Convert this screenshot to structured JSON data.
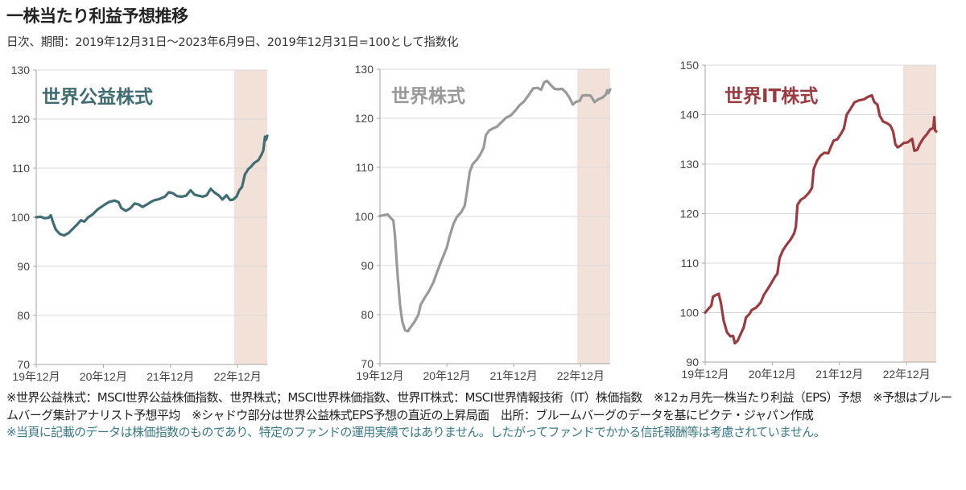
{
  "header": {
    "title": "一株当たり利益予想推移",
    "subtitle": "日次、期間：2019年12月31日～2023年6月9日、2019年12月31日=100として指数化"
  },
  "colors": {
    "shade": "#f2e1d8",
    "grid": "#d9d9d9",
    "axis": "#a6a6a6",
    "utility": "#3f6d72",
    "world": "#999999",
    "it": "#9b3a3f",
    "disclaimer": "#3a7a86"
  },
  "chart_data": [
    {
      "type": "line",
      "title": "世界公益株式",
      "xlabel": "",
      "ylabel": "",
      "ylim": [
        70,
        130
      ],
      "yticks": [
        70,
        80,
        90,
        100,
        110,
        120,
        130
      ],
      "xlim_months": [
        0,
        41.3
      ],
      "xticks": [
        {
          "month": 0,
          "label": "19年12月"
        },
        {
          "month": 12,
          "label": "20年12月"
        },
        {
          "month": 24,
          "label": "21年12月"
        },
        {
          "month": 36,
          "label": "22年12月"
        }
      ],
      "shade_months": [
        35.4,
        41.3
      ],
      "grid": true,
      "series": [
        {
          "name": "世界公益株式",
          "color_key": "utility",
          "points": [
            [
              0,
              100
            ],
            [
              0.8,
              100.1
            ],
            [
              1.5,
              99.8
            ],
            [
              2.2,
              99.9
            ],
            [
              2.6,
              100.4
            ],
            [
              3,
              99
            ],
            [
              3.5,
              97.5
            ],
            [
              4.2,
              96.6
            ],
            [
              5,
              96.3
            ],
            [
              5.8,
              96.8
            ],
            [
              6.5,
              97.6
            ],
            [
              7.3,
              98.5
            ],
            [
              8,
              99.4
            ],
            [
              8.6,
              99.1
            ],
            [
              9.3,
              100
            ],
            [
              10,
              100.5
            ],
            [
              11,
              101.6
            ],
            [
              12,
              102.4
            ],
            [
              13,
              103.1
            ],
            [
              14,
              103.4
            ],
            [
              14.7,
              103.1
            ],
            [
              15.2,
              101.9
            ],
            [
              16,
              101.3
            ],
            [
              16.8,
              101.8
            ],
            [
              17.6,
              102.8
            ],
            [
              18.3,
              102.6
            ],
            [
              19,
              102.1
            ],
            [
              19.8,
              102.6
            ],
            [
              20.6,
              103.2
            ],
            [
              21.2,
              103.5
            ],
            [
              22,
              103.7
            ],
            [
              23,
              104.2
            ],
            [
              23.7,
              105.1
            ],
            [
              24.4,
              104.9
            ],
            [
              25.2,
              104.3
            ],
            [
              26,
              104.2
            ],
            [
              26.8,
              104.4
            ],
            [
              27.6,
              105.5
            ],
            [
              28.3,
              104.6
            ],
            [
              29,
              104.4
            ],
            [
              29.8,
              104.2
            ],
            [
              30.5,
              104.5
            ],
            [
              31.2,
              105.8
            ],
            [
              31.9,
              105
            ],
            [
              32.6,
              104.5
            ],
            [
              33.3,
              103.6
            ],
            [
              34,
              104.5
            ],
            [
              34.7,
              103.5
            ],
            [
              35.2,
              103.6
            ],
            [
              35.8,
              104.2
            ],
            [
              36.3,
              105.5
            ],
            [
              36.8,
              106.2
            ],
            [
              37.3,
              108.7
            ],
            [
              37.9,
              109.8
            ],
            [
              38.4,
              110.3
            ],
            [
              39,
              111.1
            ],
            [
              39.7,
              111.6
            ],
            [
              40.2,
              112.6
            ],
            [
              40.6,
              113.6
            ],
            [
              40.9,
              116.4
            ],
            [
              41.1,
              115.8
            ],
            [
              41.3,
              116.6
            ]
          ]
        }
      ]
    },
    {
      "type": "line",
      "title": "世界株式",
      "xlabel": "",
      "ylabel": "",
      "ylim": [
        70,
        130
      ],
      "yticks": [
        70,
        80,
        90,
        100,
        110,
        120,
        130
      ],
      "xlim_months": [
        0,
        41.3
      ],
      "xticks": [
        {
          "month": 0,
          "label": "19年12月"
        },
        {
          "month": 12,
          "label": "20年12月"
        },
        {
          "month": 24,
          "label": "21年12月"
        },
        {
          "month": 36,
          "label": "22年12月"
        }
      ],
      "shade_months": [
        35.4,
        41.3
      ],
      "grid": true,
      "series": [
        {
          "name": "世界株式",
          "color_key": "world",
          "points": [
            [
              0,
              100.1
            ],
            [
              0.8,
              100.3
            ],
            [
              1.4,
              100.4
            ],
            [
              2,
              99.6
            ],
            [
              2.4,
              99.2
            ],
            [
              2.7,
              96
            ],
            [
              3.1,
              89
            ],
            [
              3.6,
              82
            ],
            [
              4,
              78.6
            ],
            [
              4.5,
              76.8
            ],
            [
              5,
              76.6
            ],
            [
              5.6,
              77.6
            ],
            [
              6.3,
              78.7
            ],
            [
              6.9,
              80
            ],
            [
              7.3,
              82
            ],
            [
              8,
              83.4
            ],
            [
              8.8,
              84.8
            ],
            [
              9.6,
              86.6
            ],
            [
              10.2,
              88.5
            ],
            [
              11,
              90.9
            ],
            [
              12,
              93.7
            ],
            [
              12.5,
              96
            ],
            [
              13.2,
              98.5
            ],
            [
              13.8,
              99.9
            ],
            [
              14.6,
              100.9
            ],
            [
              15.2,
              102.2
            ],
            [
              15.6,
              105
            ],
            [
              16.1,
              109
            ],
            [
              16.6,
              110.6
            ],
            [
              17.4,
              111.6
            ],
            [
              18,
              112.6
            ],
            [
              18.6,
              114
            ],
            [
              19,
              116.6
            ],
            [
              19.6,
              117.5
            ],
            [
              20.2,
              117.9
            ],
            [
              21,
              118.3
            ],
            [
              21.8,
              119.2
            ],
            [
              22.6,
              120.1
            ],
            [
              23.5,
              120.6
            ],
            [
              24.3,
              121.6
            ],
            [
              25,
              122.6
            ],
            [
              25.8,
              123.4
            ],
            [
              26.6,
              124.6
            ],
            [
              27.5,
              126.1
            ],
            [
              28.3,
              126.2
            ],
            [
              28.9,
              125.8
            ],
            [
              29.5,
              127.4
            ],
            [
              30,
              127.6
            ],
            [
              30.6,
              126.8
            ],
            [
              31.3,
              126
            ],
            [
              32,
              125.9
            ],
            [
              32.7,
              126
            ],
            [
              33.4,
              125.2
            ],
            [
              34,
              124.2
            ],
            [
              34.6,
              122.8
            ],
            [
              35.2,
              123.4
            ],
            [
              35.8,
              123.5
            ],
            [
              36.3,
              124.6
            ],
            [
              37,
              124.7
            ],
            [
              37.8,
              124.6
            ],
            [
              38.5,
              123.3
            ],
            [
              39.2,
              123.9
            ],
            [
              39.9,
              124.2
            ],
            [
              40.5,
              124.8
            ],
            [
              40.8,
              125.7
            ],
            [
              41,
              125.1
            ],
            [
              41.3,
              125.9
            ]
          ]
        }
      ]
    },
    {
      "type": "line",
      "title": "世界IT株式",
      "xlabel": "",
      "ylabel": "",
      "ylim": [
        90,
        150
      ],
      "yticks": [
        90,
        100,
        110,
        120,
        130,
        140,
        150
      ],
      "xlim_months": [
        0,
        41.3
      ],
      "xticks": [
        {
          "month": 0,
          "label": "19年12月"
        },
        {
          "month": 12,
          "label": "20年12月"
        },
        {
          "month": 24,
          "label": "21年12月"
        },
        {
          "month": 36,
          "label": "22年12月"
        }
      ],
      "shade_months": [
        35.4,
        41.3
      ],
      "grid": true,
      "series": [
        {
          "name": "世界IT株式",
          "color_key": "it",
          "points": [
            [
              0,
              100
            ],
            [
              0.6,
              100.8
            ],
            [
              1.1,
              101.4
            ],
            [
              1.4,
              103.2
            ],
            [
              2,
              103.6
            ],
            [
              2.4,
              103.8
            ],
            [
              2.8,
              102
            ],
            [
              3.3,
              98.4
            ],
            [
              3.9,
              96
            ],
            [
              4.5,
              95.2
            ],
            [
              5,
              95.3
            ],
            [
              5.3,
              93.8
            ],
            [
              5.8,
              94.3
            ],
            [
              6.4,
              95.8
            ],
            [
              6.9,
              97
            ],
            [
              7.3,
              99
            ],
            [
              7.9,
              99.7
            ],
            [
              8.3,
              100.5
            ],
            [
              9.1,
              101
            ],
            [
              9.9,
              102
            ],
            [
              10.5,
              103.6
            ],
            [
              11.2,
              104.8
            ],
            [
              11.9,
              106.1
            ],
            [
              12.5,
              107.3
            ],
            [
              12.9,
              107.8
            ],
            [
              13.3,
              111
            ],
            [
              13.9,
              112.6
            ],
            [
              14.6,
              113.8
            ],
            [
              15.3,
              114.8
            ],
            [
              15.9,
              116
            ],
            [
              16.2,
              117.3
            ],
            [
              16.5,
              121.8
            ],
            [
              17.1,
              122.8
            ],
            [
              17.8,
              123.3
            ],
            [
              18.6,
              124.3
            ],
            [
              19.1,
              125.2
            ],
            [
              19.4,
              129
            ],
            [
              20,
              130.7
            ],
            [
              20.6,
              131.7
            ],
            [
              21.3,
              132.3
            ],
            [
              22,
              132.2
            ],
            [
              22.5,
              133.6
            ],
            [
              23,
              134.8
            ],
            [
              23.6,
              135
            ],
            [
              24.2,
              136
            ],
            [
              24.8,
              137.2
            ],
            [
              25.3,
              140
            ],
            [
              26,
              141.2
            ],
            [
              26.7,
              142.5
            ],
            [
              27.5,
              142.9
            ],
            [
              28.4,
              143.1
            ],
            [
              29.1,
              143.6
            ],
            [
              29.8,
              143.9
            ],
            [
              30.2,
              142.6
            ],
            [
              30.8,
              142
            ],
            [
              31.2,
              139.8
            ],
            [
              31.8,
              138.6
            ],
            [
              32.5,
              138.3
            ],
            [
              33.1,
              137.8
            ],
            [
              33.6,
              136.6
            ],
            [
              34,
              134
            ],
            [
              34.4,
              133.4
            ],
            [
              34.9,
              133.7
            ],
            [
              35.5,
              134.3
            ],
            [
              36.2,
              134.4
            ],
            [
              37,
              135.1
            ],
            [
              37.4,
              132.7
            ],
            [
              37.9,
              132.9
            ],
            [
              38.4,
              134.1
            ],
            [
              39,
              135.2
            ],
            [
              39.6,
              136
            ],
            [
              40.2,
              137
            ],
            [
              40.8,
              137.3
            ],
            [
              40.95,
              139.5
            ],
            [
              41.1,
              136.8
            ],
            [
              41.3,
              136.6
            ]
          ]
        }
      ]
    }
  ],
  "notes": {
    "line1": "※世界公益株式：MSCI世界公益株価指数、世界株式；MSCI世界株価指数、世界IT株式：MSCI世界情報技術（IT）株価指数　※12ヵ月先一株当たり利益（EPS）予想　※予想はブルームバーグ集計アナリスト予想平均　※シャドウ部分は世界公益株式EPS予想の直近の上昇局面　出所：ブルームバーグのデータを基にピクテ・ジャパン作成",
    "disclaimer": "※当頁に記載のデータは株価指数のものであり、特定のファンドの運用実績ではありません。したがってファンドでかかる信託報酬等は考慮されていません。"
  }
}
